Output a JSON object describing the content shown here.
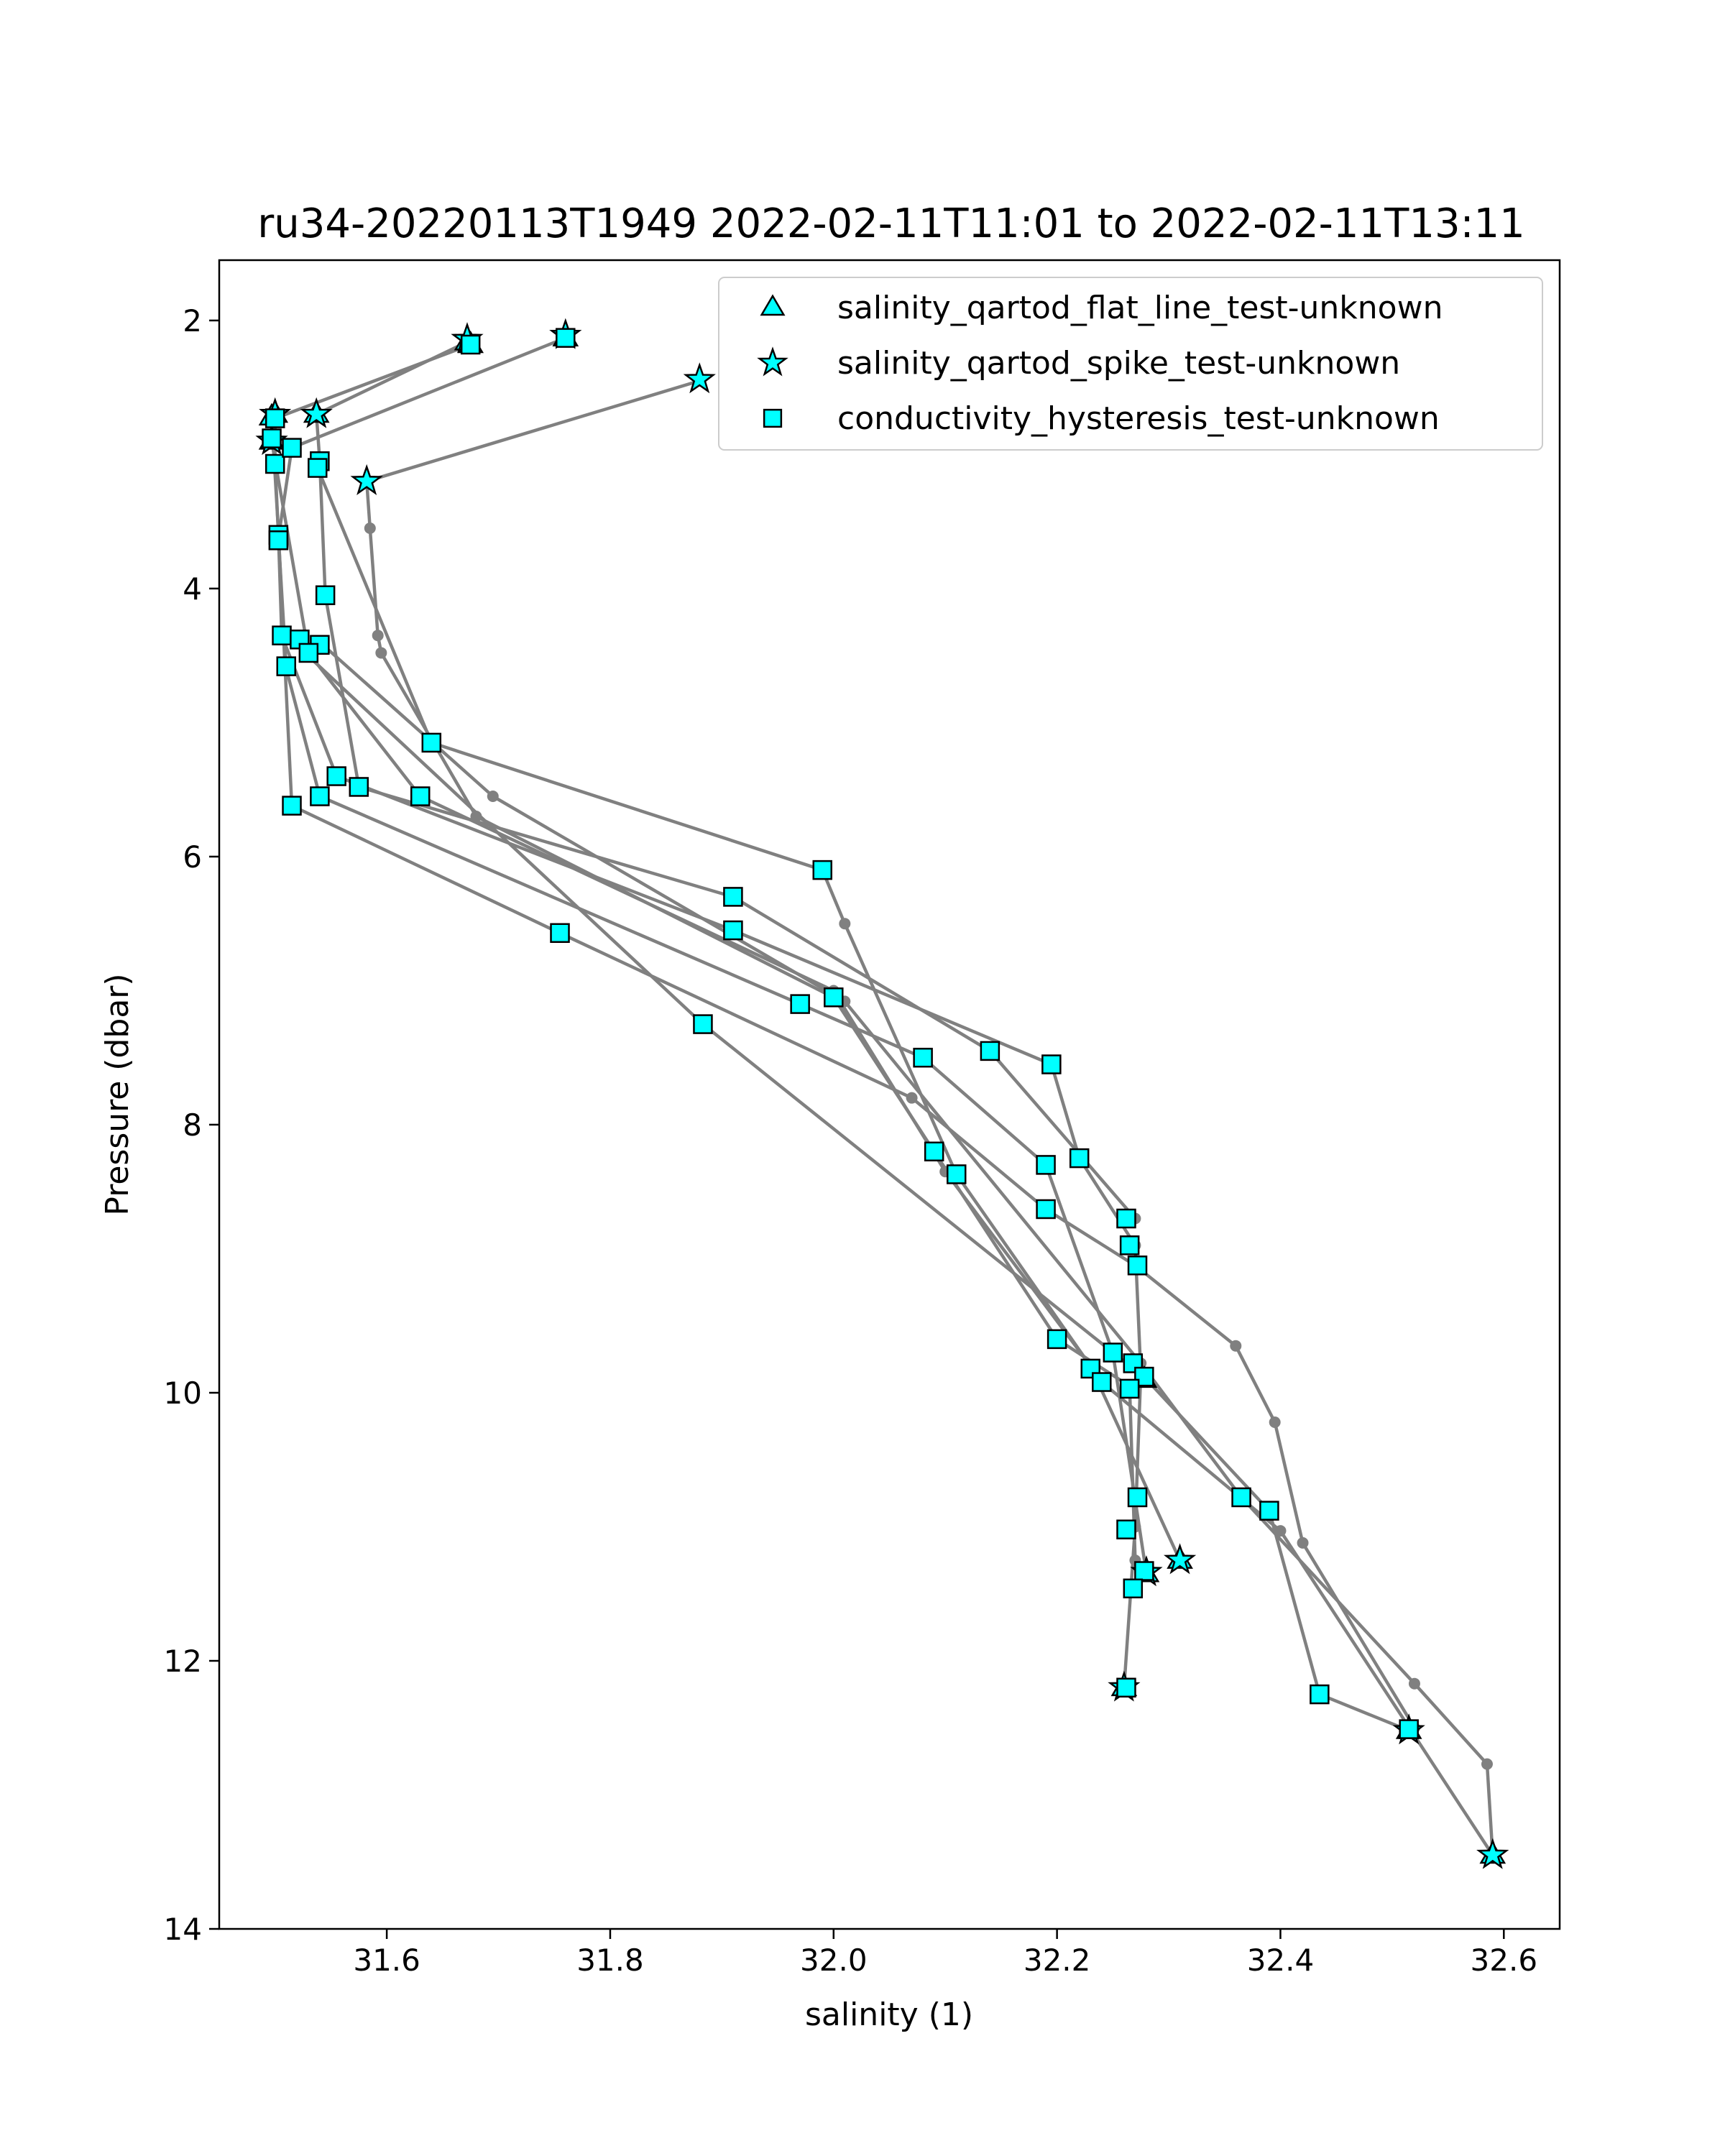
{
  "chart_data": {
    "type": "scatter",
    "title": "ru34-20220113T1949 2022-02-11T11:01 to 2022-02-11T13:11",
    "xlabel": "salinity (1)",
    "ylabel": "Pressure (dbar)",
    "xlim": [
      31.45,
      32.65
    ],
    "ylim": [
      14.0,
      1.55
    ],
    "y_inverted": true,
    "xticks": [
      31.6,
      31.8,
      32.0,
      32.2,
      32.4,
      32.6
    ],
    "xtick_labels": [
      "31.6",
      "31.8",
      "32.0",
      "32.2",
      "32.4",
      "32.6"
    ],
    "yticks": [
      2,
      4,
      6,
      8,
      10,
      12,
      14
    ],
    "ytick_labels": [
      "2",
      "4",
      "6",
      "8",
      "10",
      "12",
      "14"
    ],
    "grid": false,
    "legend_position": "top-right",
    "colors": {
      "line": "#808080",
      "marker_fill": "#00ffff",
      "marker_edge": "#000000"
    },
    "profiles": [
      [
        [
          31.672,
          2.16
        ],
        [
          31.537,
          2.7
        ],
        [
          31.54,
          3.05
        ],
        [
          31.545,
          4.05
        ],
        [
          31.575,
          5.48
        ],
        [
          31.91,
          6.3
        ],
        [
          32.14,
          7.45
        ],
        [
          32.27,
          8.7
        ]
      ],
      [
        [
          31.675,
          2.18
        ],
        [
          31.5,
          2.73
        ],
        [
          31.5,
          3.07
        ],
        [
          31.503,
          3.6
        ],
        [
          31.506,
          4.35
        ],
        [
          31.555,
          5.4
        ],
        [
          31.91,
          6.55
        ],
        [
          32.195,
          7.55
        ],
        [
          32.22,
          8.25
        ],
        [
          32.27,
          8.9
        ],
        [
          32.275,
          9.85
        ],
        [
          32.27,
          11.0
        ],
        [
          32.26,
          12.2
        ]
      ],
      [
        [
          31.76,
          2.13
        ],
        [
          31.515,
          2.95
        ],
        [
          31.503,
          3.62
        ],
        [
          31.51,
          4.6
        ],
        [
          31.54,
          5.55
        ],
        [
          31.97,
          7.1
        ],
        [
          32.08,
          7.5
        ],
        [
          32.19,
          8.3
        ],
        [
          32.25,
          9.7
        ],
        [
          32.28,
          11.35
        ],
        [
          32.27,
          11.45
        ]
      ],
      [
        [
          31.88,
          2.45
        ],
        [
          31.582,
          3.2
        ],
        [
          31.585,
          3.55
        ],
        [
          31.592,
          4.35
        ],
        [
          31.595,
          4.48
        ],
        [
          31.68,
          5.7
        ],
        [
          32.0,
          7.05
        ],
        [
          32.09,
          8.2
        ],
        [
          32.2,
          9.6
        ],
        [
          32.265,
          9.95
        ],
        [
          32.27,
          11.25
        ]
      ],
      [
        [
          31.5,
          2.7
        ],
        [
          31.497,
          2.9
        ],
        [
          31.53,
          4.48
        ],
        [
          31.63,
          5.55
        ],
        [
          32.0,
          7.0
        ],
        [
          32.1,
          8.35
        ],
        [
          32.23,
          9.8
        ],
        [
          32.31,
          11.25
        ]
      ],
      [
        [
          31.538,
          3.1
        ],
        [
          31.64,
          5.15
        ],
        [
          31.99,
          6.1
        ],
        [
          32.01,
          6.5
        ],
        [
          32.11,
          8.37
        ],
        [
          32.24,
          9.92
        ],
        [
          32.4,
          11.03
        ],
        [
          32.59,
          13.45
        ]
      ],
      [
        [
          31.497,
          2.72
        ],
        [
          31.503,
          3.58
        ],
        [
          31.515,
          5.62
        ],
        [
          31.755,
          6.57
        ],
        [
          32.07,
          7.8
        ],
        [
          32.19,
          8.63
        ],
        [
          32.27,
          9.05
        ],
        [
          32.36,
          9.65
        ],
        [
          32.395,
          10.22
        ],
        [
          32.42,
          11.12
        ],
        [
          32.52,
          12.5
        ]
      ],
      [
        [
          31.54,
          4.4
        ],
        [
          31.695,
          5.55
        ],
        [
          32.01,
          7.08
        ],
        [
          32.275,
          9.78
        ],
        [
          32.365,
          10.78
        ],
        [
          32.52,
          12.17
        ],
        [
          32.585,
          12.77
        ],
        [
          32.59,
          13.45
        ]
      ],
      [
        [
          31.51,
          4.35
        ],
        [
          31.883,
          7.25
        ],
        [
          32.28,
          9.9
        ],
        [
          32.39,
          10.88
        ],
        [
          32.435,
          12.25
        ],
        [
          32.515,
          12.52
        ]
      ]
    ],
    "series": [
      {
        "name": "salinity_qartod_flat_line_test-unknown",
        "marker": "triangle",
        "points": [
          [
            31.672,
            2.16
          ],
          [
            31.675,
            2.18
          ],
          [
            31.76,
            2.13
          ],
          [
            31.5,
            2.7
          ],
          [
            31.497,
            2.72
          ],
          [
            31.537,
            2.7
          ],
          [
            31.497,
            2.9
          ],
          [
            32.26,
            12.2
          ],
          [
            32.28,
            11.35
          ],
          [
            32.278,
            9.9
          ],
          [
            32.31,
            11.25
          ],
          [
            32.515,
            12.52
          ],
          [
            32.59,
            13.45
          ]
        ]
      },
      {
        "name": "salinity_qartod_spike_test-unknown",
        "marker": "star",
        "points": [
          [
            31.672,
            2.14
          ],
          [
            31.76,
            2.11
          ],
          [
            31.88,
            2.44
          ],
          [
            31.582,
            3.2
          ],
          [
            31.5,
            2.7
          ],
          [
            31.537,
            2.7
          ],
          [
            31.497,
            2.9
          ],
          [
            32.26,
            12.2
          ],
          [
            32.28,
            11.34
          ],
          [
            32.31,
            11.25
          ],
          [
            32.515,
            12.52
          ],
          [
            32.59,
            13.45
          ]
        ]
      },
      {
        "name": "conductivity_hysteresis_test-unknown",
        "marker": "square",
        "points": [
          [
            31.675,
            2.18
          ],
          [
            31.76,
            2.13
          ],
          [
            31.5,
            2.73
          ],
          [
            31.5,
            3.07
          ],
          [
            31.515,
            2.95
          ],
          [
            31.497,
            2.88
          ],
          [
            31.54,
            3.05
          ],
          [
            31.538,
            3.1
          ],
          [
            31.503,
            3.6
          ],
          [
            31.503,
            3.64
          ],
          [
            31.545,
            4.05
          ],
          [
            31.506,
            4.35
          ],
          [
            31.522,
            4.38
          ],
          [
            31.54,
            4.42
          ],
          [
            31.53,
            4.48
          ],
          [
            31.51,
            4.58
          ],
          [
            31.64,
            5.15
          ],
          [
            31.555,
            5.4
          ],
          [
            31.575,
            5.48
          ],
          [
            31.54,
            5.55
          ],
          [
            31.63,
            5.55
          ],
          [
            31.515,
            5.62
          ],
          [
            31.99,
            6.1
          ],
          [
            31.91,
            6.3
          ],
          [
            31.91,
            6.55
          ],
          [
            31.755,
            6.57
          ],
          [
            32.0,
            7.05
          ],
          [
            31.97,
            7.1
          ],
          [
            31.883,
            7.25
          ],
          [
            32.14,
            7.45
          ],
          [
            32.08,
            7.5
          ],
          [
            32.195,
            7.55
          ],
          [
            32.09,
            8.2
          ],
          [
            32.22,
            8.25
          ],
          [
            32.19,
            8.3
          ],
          [
            32.11,
            8.37
          ],
          [
            32.19,
            8.63
          ],
          [
            32.262,
            8.7
          ],
          [
            32.265,
            8.9
          ],
          [
            32.272,
            9.05
          ],
          [
            32.2,
            9.6
          ],
          [
            32.25,
            9.7
          ],
          [
            32.268,
            9.78
          ],
          [
            32.23,
            9.82
          ],
          [
            32.278,
            9.88
          ],
          [
            32.24,
            9.92
          ],
          [
            32.265,
            9.97
          ],
          [
            32.365,
            10.78
          ],
          [
            32.272,
            10.78
          ],
          [
            32.39,
            10.88
          ],
          [
            32.262,
            11.02
          ],
          [
            32.278,
            11.33
          ],
          [
            32.268,
            11.46
          ],
          [
            32.262,
            12.2
          ],
          [
            32.435,
            12.25
          ],
          [
            32.515,
            12.51
          ]
        ]
      }
    ]
  }
}
